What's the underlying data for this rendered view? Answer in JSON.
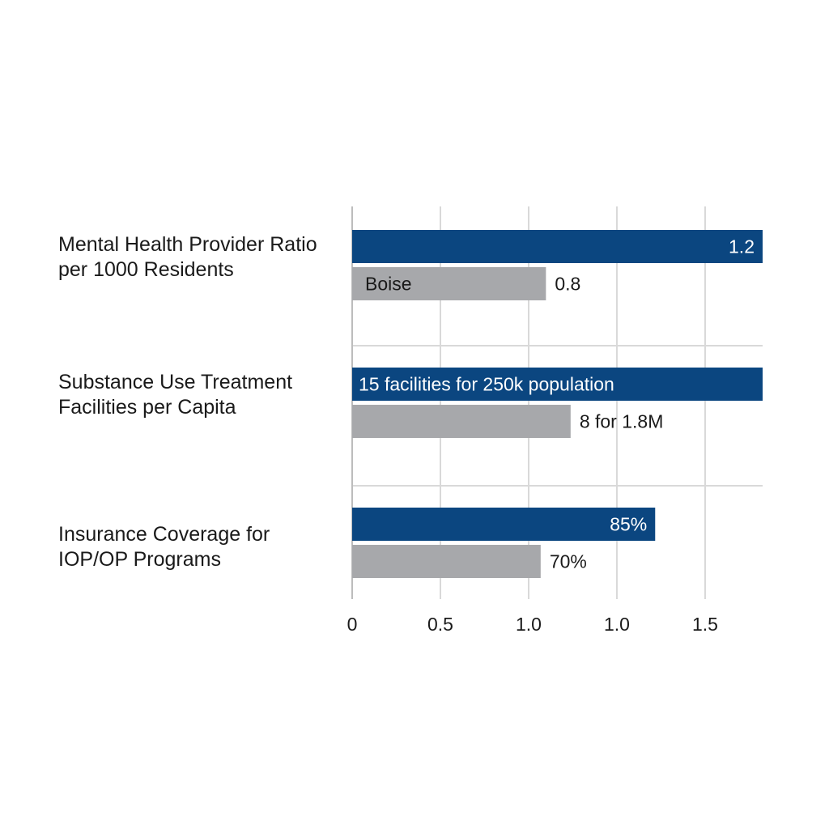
{
  "chart_data": {
    "type": "bar",
    "orientation": "horizontal",
    "grid": true,
    "colors": {
      "primary": "#0b4680",
      "secondary": "#a7a8ab",
      "grid": "#d9d9d9"
    },
    "x_ticks": [
      "0",
      "0.5",
      "1.0",
      "1.0",
      "1.5"
    ],
    "xlim": [
      0,
      2.33
    ],
    "groups": [
      {
        "label_lines": [
          "Mental Health Provider Ratio",
          "per 1000 Residents"
        ],
        "bars": [
          {
            "value": 2.33,
            "label": "1.2",
            "label_pos": "inside-end"
          },
          {
            "value": 1.1,
            "label": "0.8",
            "label_pos": "outside",
            "inner_label": "Boise"
          }
        ]
      },
      {
        "label_lines": [
          "Substance Use Treatment",
          "Facilities per Capita"
        ],
        "bars": [
          {
            "value": 2.33,
            "label": "15 facilities for 250k population",
            "label_pos": "inside-start"
          },
          {
            "value": 1.24,
            "label": "8 for 1.8M",
            "label_pos": "outside"
          }
        ]
      },
      {
        "label_lines": [
          "Insurance Coverage for",
          "IOP/OP Programs"
        ],
        "bars": [
          {
            "value": 1.72,
            "label": "85%",
            "label_pos": "inside-end"
          },
          {
            "value": 1.07,
            "label": "70%",
            "label_pos": "outside"
          }
        ]
      }
    ]
  }
}
